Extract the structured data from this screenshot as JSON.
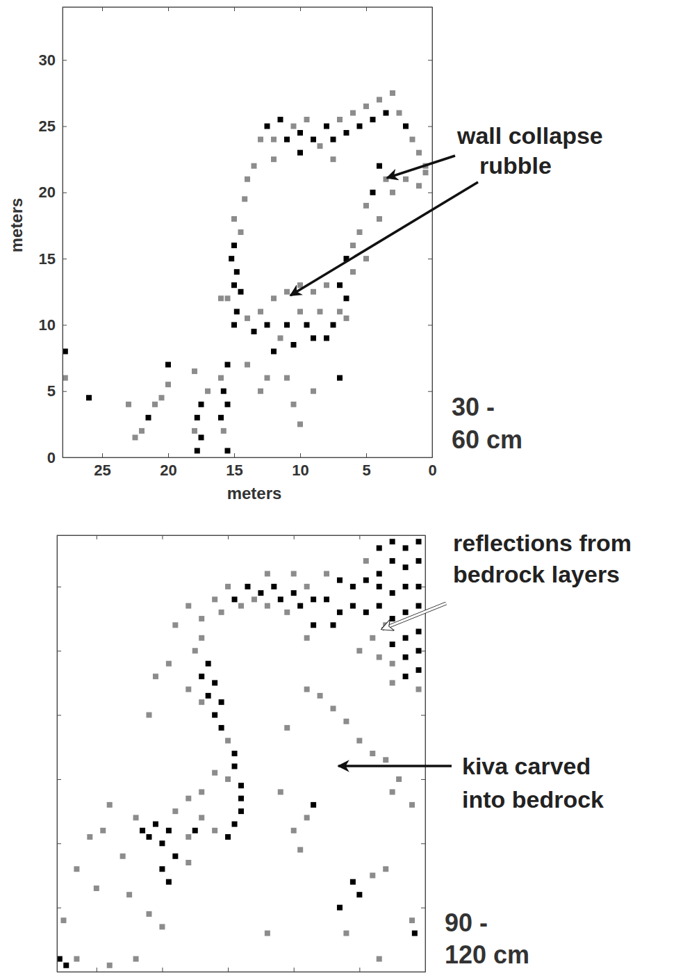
{
  "chart_data": [
    {
      "type": "scatter",
      "xlabel": "meters",
      "ylabel": "meters",
      "xlim": [
        28,
        0
      ],
      "ylim": [
        0,
        34
      ],
      "xticks": [
        25,
        20,
        15,
        10,
        5,
        0
      ],
      "yticks": [
        0,
        5,
        10,
        15,
        20,
        25,
        30
      ],
      "tick_labels": true,
      "depth_label": [
        "30 -",
        "60 cm"
      ],
      "annotations": [
        {
          "text": [
            "wall collapse",
            "rubble"
          ]
        }
      ],
      "points": [
        [
          13,
          24,
          1
        ],
        [
          12.5,
          25,
          2
        ],
        [
          12,
          24,
          1
        ],
        [
          11.5,
          25.5,
          2
        ],
        [
          11,
          24,
          2
        ],
        [
          10.5,
          25,
          1
        ],
        [
          10,
          24.5,
          2
        ],
        [
          9.5,
          25.5,
          1
        ],
        [
          9,
          24,
          2
        ],
        [
          8.5,
          23.5,
          1
        ],
        [
          8,
          25,
          2
        ],
        [
          7.5,
          24,
          2
        ],
        [
          7,
          25.5,
          1
        ],
        [
          6.5,
          24.5,
          2
        ],
        [
          6,
          26,
          1
        ],
        [
          5.5,
          25,
          2
        ],
        [
          5,
          26.5,
          1
        ],
        [
          4.5,
          25.5,
          2
        ],
        [
          4,
          27,
          1
        ],
        [
          3.5,
          26,
          2
        ],
        [
          3,
          27.5,
          1
        ],
        [
          2.5,
          26,
          1
        ],
        [
          2,
          25,
          2
        ],
        [
          1.5,
          24,
          1
        ],
        [
          1,
          23,
          1
        ],
        [
          0.5,
          22,
          1
        ],
        [
          12,
          22.5,
          1
        ],
        [
          10,
          23,
          2
        ],
        [
          7.5,
          22.5,
          1
        ],
        [
          13.5,
          22,
          1
        ],
        [
          14,
          21,
          1
        ],
        [
          14.2,
          19.5,
          1
        ],
        [
          4,
          22,
          2
        ],
        [
          3.5,
          21,
          1
        ],
        [
          4.5,
          20,
          2
        ],
        [
          3,
          20,
          1
        ],
        [
          2,
          21,
          1
        ],
        [
          5,
          19,
          1
        ],
        [
          4,
          18,
          1
        ],
        [
          5.5,
          17,
          1
        ],
        [
          6,
          16,
          1
        ],
        [
          6.5,
          15,
          2
        ],
        [
          6,
          14,
          1
        ],
        [
          7,
          13,
          2
        ],
        [
          6.5,
          12,
          2
        ],
        [
          7,
          11,
          1
        ],
        [
          7.5,
          10,
          2
        ],
        [
          6.5,
          10.5,
          1
        ],
        [
          8,
          9,
          2
        ],
        [
          1,
          20.5,
          1
        ],
        [
          0.5,
          21.5,
          1
        ],
        [
          5,
          15,
          1
        ],
        [
          15,
          18,
          1
        ],
        [
          14.5,
          17,
          1
        ],
        [
          15,
          16,
          2
        ],
        [
          15.2,
          15,
          2
        ],
        [
          14.8,
          14,
          2
        ],
        [
          15,
          13,
          2
        ],
        [
          14.5,
          12.5,
          2
        ],
        [
          15.5,
          12,
          1
        ],
        [
          14.8,
          11,
          2
        ],
        [
          14,
          10.5,
          1
        ],
        [
          15,
          10,
          2
        ],
        [
          13.5,
          9.5,
          2
        ],
        [
          16,
          12,
          1
        ],
        [
          13,
          11,
          1
        ],
        [
          12.5,
          10,
          2
        ],
        [
          12,
          12,
          1
        ],
        [
          11,
          10,
          2
        ],
        [
          11,
          12.5,
          1
        ],
        [
          10,
          11,
          1
        ],
        [
          10.5,
          8.5,
          2
        ],
        [
          9.5,
          10,
          2
        ],
        [
          9,
          9,
          2
        ],
        [
          9,
          12.5,
          1
        ],
        [
          8.5,
          11,
          1
        ],
        [
          8,
          13,
          1
        ],
        [
          12,
          8,
          2
        ],
        [
          10,
          13,
          1
        ],
        [
          7,
          6,
          2
        ],
        [
          9,
          5,
          1
        ],
        [
          11,
          6,
          1
        ],
        [
          15.5,
          7,
          2
        ],
        [
          16,
          6,
          1
        ],
        [
          15.8,
          5,
          2
        ],
        [
          15.5,
          4,
          2
        ],
        [
          16,
          3,
          2
        ],
        [
          15.8,
          2,
          1
        ],
        [
          15.5,
          0.5,
          2
        ],
        [
          17,
          5,
          1
        ],
        [
          17.5,
          4,
          2
        ],
        [
          17.8,
          3,
          2
        ],
        [
          18,
          2,
          1
        ],
        [
          17.5,
          1.5,
          2
        ],
        [
          17.8,
          0.5,
          2
        ],
        [
          18,
          6.5,
          1
        ],
        [
          20,
          5.5,
          1
        ],
        [
          21,
          4,
          1
        ],
        [
          21.5,
          3,
          2
        ],
        [
          22,
          2,
          1
        ],
        [
          22.5,
          1.5,
          1
        ],
        [
          23,
          4,
          1
        ],
        [
          20.5,
          4.5,
          1
        ],
        [
          14,
          7,
          1
        ],
        [
          13,
          5,
          1
        ],
        [
          12.5,
          6,
          1
        ],
        [
          10.5,
          4,
          1
        ],
        [
          10,
          2.5,
          1
        ],
        [
          26,
          4.5,
          2
        ],
        [
          27.8,
          8,
          2
        ],
        [
          27.8,
          6,
          1
        ],
        [
          20,
          7,
          2
        ],
        [
          11.5,
          9,
          1
        ]
      ]
    },
    {
      "type": "scatter",
      "xlim": [
        28,
        0
      ],
      "ylim": [
        0,
        34
      ],
      "xticks": [
        25,
        20,
        15,
        10,
        5,
        0
      ],
      "yticks": [
        0,
        5,
        10,
        15,
        20,
        25,
        30
      ],
      "tick_labels": false,
      "depth_label": [
        "90 -",
        "120 cm"
      ],
      "annotations": [
        {
          "text": [
            "reflections from",
            "bedrock layers"
          ]
        },
        {
          "text": [
            "kiva carved",
            "into bedrock"
          ]
        }
      ],
      "points": [
        [
          0.5,
          33.5,
          2
        ],
        [
          1.5,
          33,
          2
        ],
        [
          2.5,
          33.5,
          2
        ],
        [
          3.5,
          33,
          2
        ],
        [
          0.5,
          32,
          2
        ],
        [
          1.5,
          31.5,
          2
        ],
        [
          2.5,
          32,
          2
        ],
        [
          3.5,
          31,
          2
        ],
        [
          4.5,
          32,
          1
        ],
        [
          0.5,
          30,
          2
        ],
        [
          1.5,
          30,
          2
        ],
        [
          2.5,
          29.5,
          2
        ],
        [
          3.5,
          30,
          2
        ],
        [
          4.5,
          30.5,
          2
        ],
        [
          5.5,
          30,
          2
        ],
        [
          6.5,
          30.5,
          2
        ],
        [
          7.5,
          31,
          1
        ],
        [
          0.5,
          28.5,
          2
        ],
        [
          1.5,
          28,
          2
        ],
        [
          2.5,
          27.5,
          2
        ],
        [
          3.5,
          28.5,
          2
        ],
        [
          4.5,
          28,
          2
        ],
        [
          5.5,
          28.5,
          2
        ],
        [
          6.5,
          28,
          2
        ],
        [
          7.5,
          29,
          2
        ],
        [
          0.5,
          26.5,
          2
        ],
        [
          1.5,
          26,
          2
        ],
        [
          2.5,
          25.5,
          2
        ],
        [
          3,
          27,
          1
        ],
        [
          4,
          26,
          1
        ],
        [
          0.5,
          25,
          2
        ],
        [
          1.5,
          24.5,
          2
        ],
        [
          2.5,
          24,
          1
        ],
        [
          0.5,
          23.5,
          2
        ],
        [
          1.5,
          23,
          2
        ],
        [
          2.5,
          22.5,
          1
        ],
        [
          3.5,
          24.5,
          1
        ],
        [
          5,
          25,
          1
        ],
        [
          0.5,
          22,
          1
        ],
        [
          8.5,
          29,
          2
        ],
        [
          9,
          30,
          1
        ],
        [
          9.5,
          28.5,
          2
        ],
        [
          10,
          29.5,
          2
        ],
        [
          10.5,
          28,
          1
        ],
        [
          11,
          29,
          2
        ],
        [
          11.5,
          30,
          2
        ],
        [
          12,
          28.5,
          1
        ],
        [
          12.5,
          29.5,
          2
        ],
        [
          13,
          29,
          1
        ],
        [
          13.5,
          30,
          2
        ],
        [
          14,
          28.5,
          1
        ],
        [
          14.5,
          29,
          2
        ],
        [
          15,
          30,
          1
        ],
        [
          15.5,
          28,
          1
        ],
        [
          16,
          29,
          1
        ],
        [
          17,
          27.5,
          1
        ],
        [
          18,
          28.5,
          1
        ],
        [
          19,
          27,
          1
        ],
        [
          10,
          31,
          1
        ],
        [
          12,
          31,
          1
        ],
        [
          8.5,
          27,
          2
        ],
        [
          9,
          26,
          1
        ],
        [
          7,
          27,
          2
        ],
        [
          17,
          26,
          1
        ],
        [
          17.5,
          25,
          1
        ],
        [
          16.5,
          24,
          2
        ],
        [
          17,
          23,
          2
        ],
        [
          16,
          22.5,
          2
        ],
        [
          16.5,
          21.5,
          2
        ],
        [
          15.5,
          21,
          2
        ],
        [
          16,
          20,
          2
        ],
        [
          15.5,
          19,
          2
        ],
        [
          17,
          21,
          1
        ],
        [
          18,
          22,
          1
        ],
        [
          19.5,
          24,
          1
        ],
        [
          20.5,
          23,
          1
        ],
        [
          21,
          20,
          1
        ],
        [
          15,
          18,
          1
        ],
        [
          14.5,
          17,
          2
        ],
        [
          14.5,
          16,
          2
        ],
        [
          15,
          15,
          1
        ],
        [
          14,
          14.5,
          2
        ],
        [
          14,
          13.5,
          2
        ],
        [
          14,
          12.5,
          2
        ],
        [
          14.5,
          11.5,
          2
        ],
        [
          15,
          10.5,
          2
        ],
        [
          16,
          11,
          1
        ],
        [
          17,
          12,
          1
        ],
        [
          17.5,
          11,
          2
        ],
        [
          18,
          10.5,
          1
        ],
        [
          19.5,
          11,
          2
        ],
        [
          20.5,
          11.5,
          2
        ],
        [
          21,
          10.5,
          2
        ],
        [
          20,
          10,
          2
        ],
        [
          21.5,
          11,
          2
        ],
        [
          19,
          12.5,
          1
        ],
        [
          18,
          13.5,
          1
        ],
        [
          17,
          14,
          1
        ],
        [
          16,
          15.5,
          1
        ],
        [
          19,
          9,
          2
        ],
        [
          20,
          8,
          2
        ],
        [
          19.5,
          7,
          2
        ],
        [
          18,
          8.5,
          1
        ],
        [
          22,
          12,
          1
        ],
        [
          23,
          9,
          1
        ],
        [
          24,
          13,
          1
        ],
        [
          24.5,
          11,
          1
        ],
        [
          25.5,
          10.5,
          1
        ],
        [
          22.5,
          6,
          1
        ],
        [
          21,
          4.5,
          1
        ],
        [
          20,
          3.5,
          1
        ],
        [
          25,
          6.5,
          1
        ],
        [
          26.5,
          8,
          1
        ],
        [
          27.5,
          4,
          1
        ],
        [
          27.8,
          1,
          2
        ],
        [
          27.3,
          0.5,
          2
        ],
        [
          26.5,
          1,
          1
        ],
        [
          24,
          0.5,
          1
        ],
        [
          22,
          1,
          1
        ],
        [
          1,
          13,
          1
        ],
        [
          2,
          15,
          1
        ],
        [
          3,
          16.5,
          1
        ],
        [
          4,
          17,
          1
        ],
        [
          5,
          18,
          1
        ],
        [
          6,
          19.5,
          1
        ],
        [
          7,
          20.5,
          1
        ],
        [
          8,
          21.5,
          1
        ],
        [
          9,
          22,
          1
        ],
        [
          2.5,
          14,
          1
        ],
        [
          8.5,
          13,
          2
        ],
        [
          9,
          12,
          1
        ],
        [
          10,
          11,
          1
        ],
        [
          9.5,
          9.5,
          1
        ],
        [
          5,
          6,
          2
        ],
        [
          5.5,
          7,
          2
        ],
        [
          6.5,
          5,
          2
        ],
        [
          4,
          7.5,
          1
        ],
        [
          3,
          8,
          1
        ],
        [
          6,
          3,
          1
        ],
        [
          1,
          4,
          1
        ],
        [
          0.8,
          3,
          2
        ],
        [
          10.5,
          19,
          1
        ],
        [
          11,
          14,
          1
        ],
        [
          3.5,
          1,
          1
        ],
        [
          12,
          3,
          1
        ]
      ]
    }
  ]
}
